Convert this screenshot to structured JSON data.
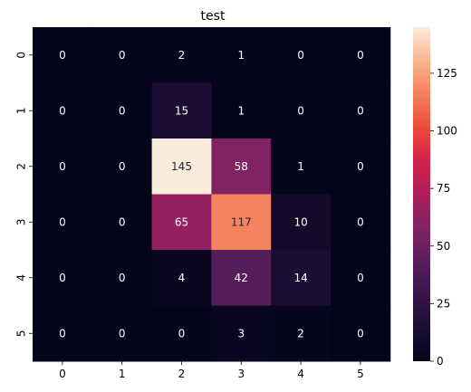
{
  "chart_data": {
    "type": "heatmap",
    "title": "test",
    "x_categories": [
      "0",
      "1",
      "2",
      "3",
      "4",
      "5"
    ],
    "y_categories": [
      "0",
      "1",
      "2",
      "3",
      "4",
      "5"
    ],
    "values": [
      [
        0,
        0,
        2,
        1,
        0,
        0
      ],
      [
        0,
        0,
        15,
        1,
        0,
        0
      ],
      [
        0,
        0,
        145,
        58,
        1,
        0
      ],
      [
        0,
        0,
        65,
        117,
        10,
        0
      ],
      [
        0,
        0,
        4,
        42,
        14,
        0
      ],
      [
        0,
        0,
        0,
        3,
        2,
        0
      ]
    ],
    "colorbar": {
      "range": [
        0,
        145
      ],
      "ticks": [
        0,
        25,
        50,
        75,
        100,
        125
      ]
    },
    "colormap": "rocket"
  }
}
